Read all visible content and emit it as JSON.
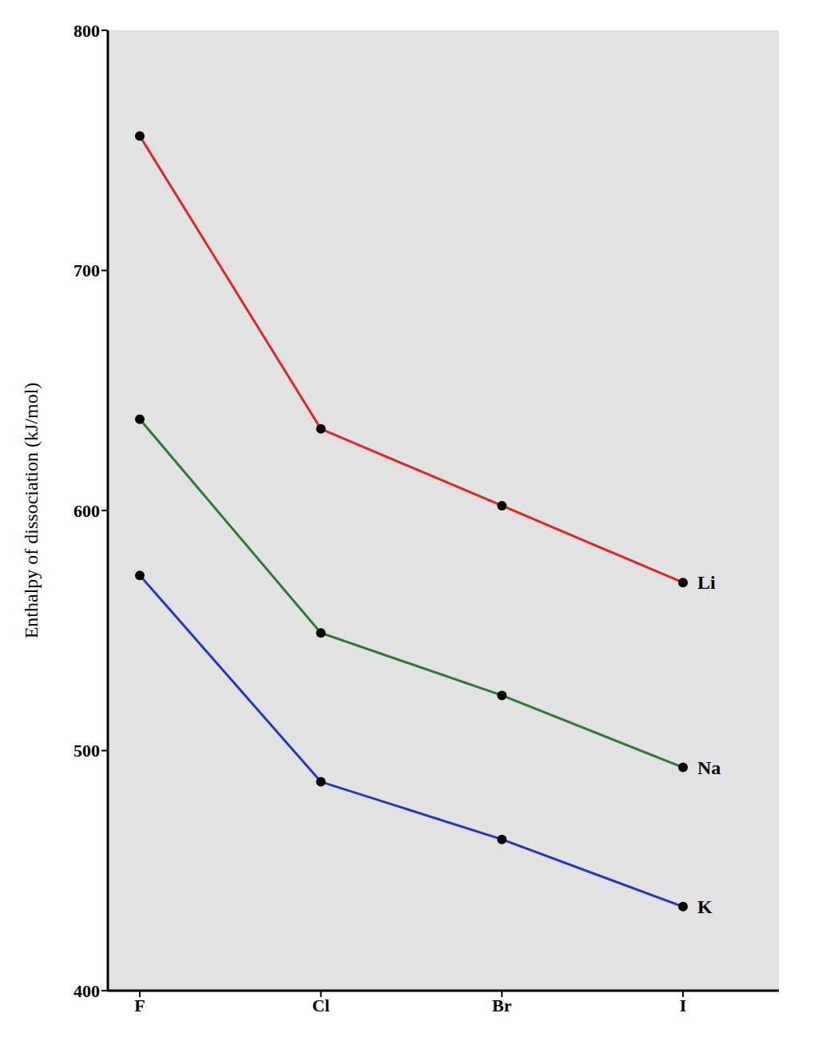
{
  "chart_data": {
    "type": "line",
    "y_label": "Enthalpy of dissociation (kJ/mol)",
    "categories": [
      "F",
      "Cl",
      "Br",
      "I"
    ],
    "series": [
      {
        "name": "Li",
        "color": "#e02424",
        "values": [
          756,
          634,
          602,
          570
        ]
      },
      {
        "name": "Na",
        "color": "#2e7a34",
        "values": [
          638,
          549,
          523,
          493
        ]
      },
      {
        "name": "K",
        "color": "#2435c4",
        "values": [
          573,
          487,
          463,
          435
        ]
      }
    ],
    "ylim": [
      400,
      800
    ],
    "yticks": [
      400,
      500,
      600,
      700,
      800
    ],
    "grid": false,
    "marker": "circle"
  }
}
